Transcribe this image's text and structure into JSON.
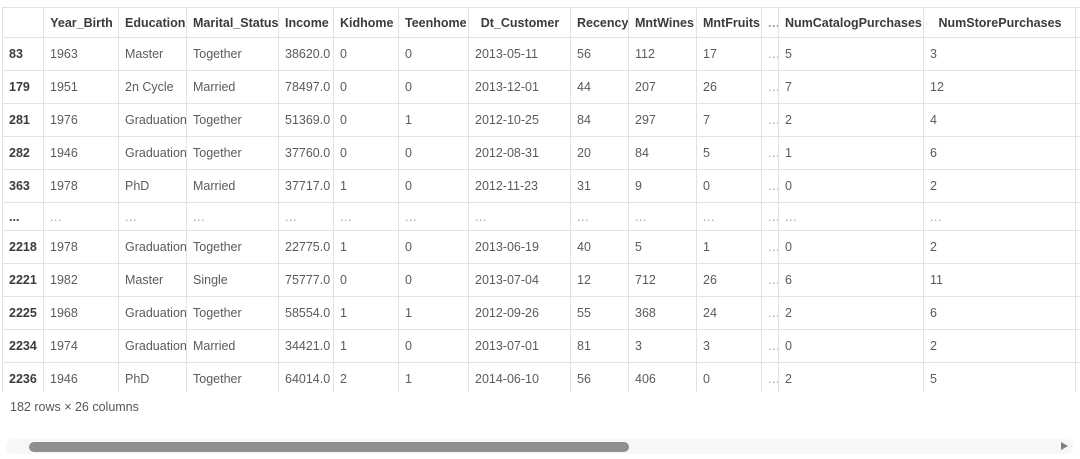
{
  "theme": {
    "background": "#ffffff",
    "border": "#e2e2e2",
    "header_text": "#3b3b3b",
    "cell_text": "#5b5b5b",
    "muted_text": "#9e9e9e",
    "scrollbar_thumb": "#8f8f8f",
    "scrollbar_track": "#f7f7f7",
    "arrow": "#7f7f7f",
    "summary_text": "#565656"
  },
  "table": {
    "columns": [
      "",
      "Year_Birth",
      "Education",
      "Marital_Status",
      "Income",
      "Kidhome",
      "Teenhome",
      "Dt_Customer",
      "Recency",
      "MntWines",
      "MntFruits",
      "...",
      "NumCatalogPurchases",
      "NumStorePurchases"
    ],
    "rows": [
      {
        "index": "83",
        "cells": [
          "1963",
          "Master",
          "Together",
          "38620.0",
          "0",
          "0",
          "2013-05-11",
          "56",
          "112",
          "17",
          "...",
          "5",
          "3"
        ]
      },
      {
        "index": "179",
        "cells": [
          "1951",
          "2n Cycle",
          "Married",
          "78497.0",
          "0",
          "0",
          "2013-12-01",
          "44",
          "207",
          "26",
          "...",
          "7",
          "12"
        ]
      },
      {
        "index": "281",
        "cells": [
          "1976",
          "Graduation",
          "Together",
          "51369.0",
          "0",
          "1",
          "2012-10-25",
          "84",
          "297",
          "7",
          "...",
          "2",
          "4"
        ]
      },
      {
        "index": "282",
        "cells": [
          "1946",
          "Graduation",
          "Together",
          "37760.0",
          "0",
          "0",
          "2012-08-31",
          "20",
          "84",
          "5",
          "...",
          "1",
          "6"
        ]
      },
      {
        "index": "363",
        "cells": [
          "1978",
          "PhD",
          "Married",
          "37717.0",
          "1",
          "0",
          "2012-11-23",
          "31",
          "9",
          "0",
          "...",
          "0",
          "2"
        ]
      },
      {
        "index": "...",
        "cells": [
          "...",
          "...",
          "...",
          "...",
          "...",
          "...",
          "...",
          "...",
          "...",
          "...",
          "...",
          "...",
          "..."
        ]
      },
      {
        "index": "2218",
        "cells": [
          "1978",
          "Graduation",
          "Together",
          "22775.0",
          "1",
          "0",
          "2013-06-19",
          "40",
          "5",
          "1",
          "...",
          "0",
          "2"
        ]
      },
      {
        "index": "2221",
        "cells": [
          "1982",
          "Master",
          "Single",
          "75777.0",
          "0",
          "0",
          "2013-07-04",
          "12",
          "712",
          "26",
          "...",
          "6",
          "11"
        ]
      },
      {
        "index": "2225",
        "cells": [
          "1968",
          "Graduation",
          "Together",
          "58554.0",
          "1",
          "1",
          "2012-09-26",
          "55",
          "368",
          "24",
          "...",
          "2",
          "6"
        ]
      },
      {
        "index": "2234",
        "cells": [
          "1974",
          "Graduation",
          "Married",
          "34421.0",
          "1",
          "0",
          "2013-07-01",
          "81",
          "3",
          "3",
          "...",
          "0",
          "2"
        ]
      },
      {
        "index": "2236",
        "cells": [
          "1946",
          "PhD",
          "Together",
          "64014.0",
          "2",
          "1",
          "2014-06-10",
          "56",
          "406",
          "0",
          "...",
          "2",
          "5"
        ]
      }
    ],
    "summary": "182 rows × 26 columns"
  }
}
